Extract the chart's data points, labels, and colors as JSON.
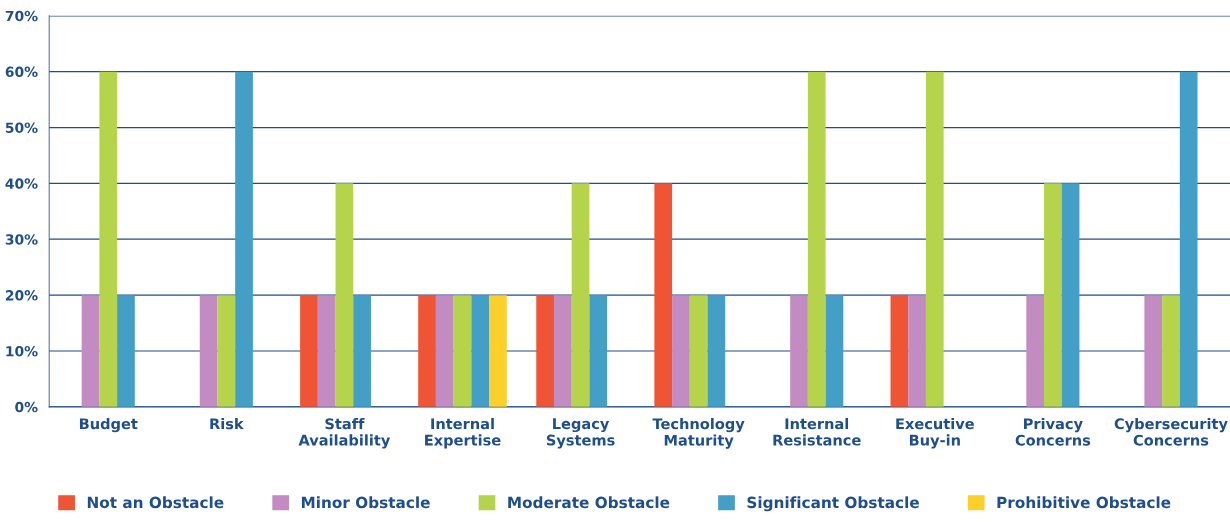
{
  "chart_data": {
    "type": "bar",
    "categories": [
      "Budget",
      "Risk",
      "Staff\nAvailability",
      "Internal\nExpertise",
      "Legacy\nSystems",
      "Technology\nMaturity",
      "Internal\nResistance",
      "Executive\nBuy-in",
      "Privacy\nConcerns",
      "Cybersecurity\nConcerns"
    ],
    "series": [
      {
        "name": "Not an Obstacle",
        "color": "#ef5435",
        "values": [
          0,
          0,
          20,
          20,
          20,
          40,
          0,
          20,
          0,
          0
        ]
      },
      {
        "name": "Minor Obstacle",
        "color": "#c28bc1",
        "values": [
          20,
          20,
          20,
          20,
          20,
          20,
          20,
          20,
          20,
          20
        ]
      },
      {
        "name": "Moderate Obstacle",
        "color": "#b5d44b",
        "values": [
          60,
          20,
          40,
          20,
          40,
          20,
          60,
          60,
          40,
          20
        ]
      },
      {
        "name": "Significant Obstacle",
        "color": "#449fc7",
        "values": [
          20,
          60,
          20,
          20,
          20,
          20,
          20,
          0,
          40,
          60
        ]
      },
      {
        "name": "Prohibitive Obstacle",
        "color": "#fccf2b",
        "values": [
          0,
          0,
          0,
          20,
          0,
          0,
          0,
          0,
          0,
          0
        ]
      }
    ],
    "ylim": [
      0,
      70
    ],
    "yticks": [
      {
        "value": 0,
        "label": "0%"
      },
      {
        "value": 10,
        "label": "10%"
      },
      {
        "value": 20,
        "label": "20%"
      },
      {
        "value": 30,
        "label": "30%"
      },
      {
        "value": 40,
        "label": "40%"
      },
      {
        "value": 50,
        "label": "50%"
      },
      {
        "value": 60,
        "label": "60%"
      },
      {
        "value": 70,
        "label": "70%"
      }
    ],
    "grid": "y",
    "legend": "bottom"
  }
}
